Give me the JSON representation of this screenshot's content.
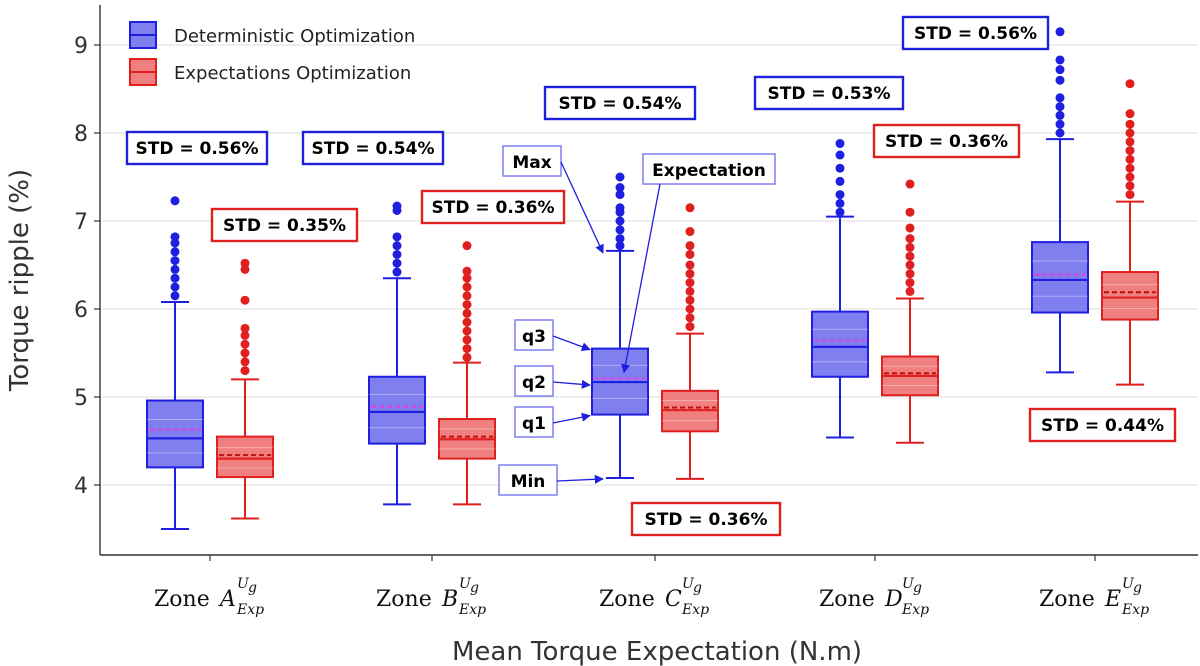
{
  "chart_data": {
    "type": "boxplot",
    "title": "",
    "xlabel": "Mean Torque Expectation (N.m)",
    "ylabel": "Torque ripple (%)",
    "ylim": [
      3.3,
      9.5
    ],
    "yticks": [
      4,
      5,
      6,
      7,
      8,
      9
    ],
    "grid": true,
    "legend_position": "top-left",
    "categories": [
      {
        "prefix": "Zone ",
        "letter": "A",
        "sup": "U",
        "supsub": "g",
        "sub": "Exp"
      },
      {
        "prefix": "Zone ",
        "letter": "B",
        "sup": "U",
        "supsub": "g",
        "sub": "Exp"
      },
      {
        "prefix": "Zone ",
        "letter": "C",
        "sup": "U",
        "supsub": "g",
        "sub": "Exp"
      },
      {
        "prefix": "Zone ",
        "letter": "D",
        "sup": "U",
        "supsub": "g",
        "sub": "Exp"
      },
      {
        "prefix": "Zone ",
        "letter": "E",
        "sup": "U",
        "supsub": "g",
        "sub": "Exp"
      }
    ],
    "series": [
      {
        "name": "Deterministic Optimization",
        "color": "#1f1fe0",
        "fill": "#7f7ff0",
        "boxes": [
          {
            "min": 3.5,
            "q1": 4.2,
            "median": 4.53,
            "q3": 4.96,
            "max": 6.08,
            "mean": 4.63,
            "outliers": [
              6.15,
              6.25,
              6.35,
              6.45,
              6.55,
              6.65,
              6.75,
              6.82,
              7.23
            ],
            "std": "STD = 0.56%"
          },
          {
            "min": 3.78,
            "q1": 4.47,
            "median": 4.83,
            "q3": 5.23,
            "max": 6.35,
            "mean": 4.89,
            "outliers": [
              6.42,
              6.52,
              6.62,
              6.72,
              6.82,
              7.12,
              7.17
            ],
            "std": "STD = 0.54%"
          },
          {
            "min": 4.08,
            "q1": 4.8,
            "median": 5.17,
            "q3": 5.55,
            "max": 6.66,
            "mean": 5.21,
            "outliers": [
              6.72,
              6.8,
              6.9,
              7.0,
              7.1,
              7.15,
              7.3,
              7.38,
              7.5
            ],
            "std": "STD = 0.54%"
          },
          {
            "min": 4.54,
            "q1": 5.23,
            "median": 5.57,
            "q3": 5.97,
            "max": 7.05,
            "mean": 5.64,
            "outliers": [
              7.1,
              7.2,
              7.3,
              7.45,
              7.6,
              7.75,
              7.88
            ],
            "std": "STD = 0.53%"
          },
          {
            "min": 5.28,
            "q1": 5.96,
            "median": 6.33,
            "q3": 6.76,
            "max": 7.93,
            "mean": 6.39,
            "outliers": [
              8.0,
              8.1,
              8.2,
              8.3,
              8.4,
              8.6,
              8.72,
              8.83,
              9.15
            ],
            "std": "STD = 0.56%"
          }
        ]
      },
      {
        "name": "Expectations Optimization",
        "color": "#e01f1f",
        "fill": "#f08080",
        "boxes": [
          {
            "min": 3.62,
            "q1": 4.09,
            "median": 4.3,
            "q3": 4.55,
            "max": 5.2,
            "mean": 4.34,
            "outliers": [
              5.3,
              5.4,
              5.5,
              5.6,
              5.7,
              5.78,
              6.1,
              6.45,
              6.52
            ],
            "std": "STD = 0.35%"
          },
          {
            "min": 3.78,
            "q1": 4.3,
            "median": 4.52,
            "q3": 4.75,
            "max": 5.39,
            "mean": 4.55,
            "outliers": [
              5.45,
              5.55,
              5.65,
              5.75,
              5.85,
              5.95,
              6.05,
              6.15,
              6.25,
              6.35,
              6.43,
              6.72
            ],
            "std": "STD = 0.36%"
          },
          {
            "min": 4.07,
            "q1": 4.61,
            "median": 4.85,
            "q3": 5.07,
            "max": 5.72,
            "mean": 4.88,
            "outliers": [
              5.8,
              5.9,
              6.0,
              6.1,
              6.2,
              6.3,
              6.4,
              6.5,
              6.62,
              6.72,
              6.88,
              7.15
            ],
            "std": "STD = 0.36%"
          },
          {
            "min": 4.48,
            "q1": 5.02,
            "median": 5.24,
            "q3": 5.46,
            "max": 6.12,
            "mean": 5.27,
            "outliers": [
              6.2,
              6.3,
              6.4,
              6.5,
              6.6,
              6.7,
              6.8,
              6.92,
              7.1,
              7.42
            ],
            "std": "STD = 0.36%"
          },
          {
            "min": 5.14,
            "q1": 5.88,
            "median": 6.13,
            "q3": 6.42,
            "max": 7.22,
            "mean": 6.19,
            "outliers": [
              7.3,
              7.4,
              7.5,
              7.6,
              7.7,
              7.8,
              7.9,
              8.0,
              8.1,
              8.22,
              8.56
            ],
            "std": "STD = 0.44%"
          }
        ]
      }
    ],
    "annotations": [
      {
        "label": "Max",
        "target": "max"
      },
      {
        "label": "Expectation",
        "target": "mean"
      },
      {
        "label": "q3",
        "target": "q3"
      },
      {
        "label": "q2",
        "target": "median"
      },
      {
        "label": "q1",
        "target": "q1"
      },
      {
        "label": "Min",
        "target": "min"
      }
    ]
  }
}
